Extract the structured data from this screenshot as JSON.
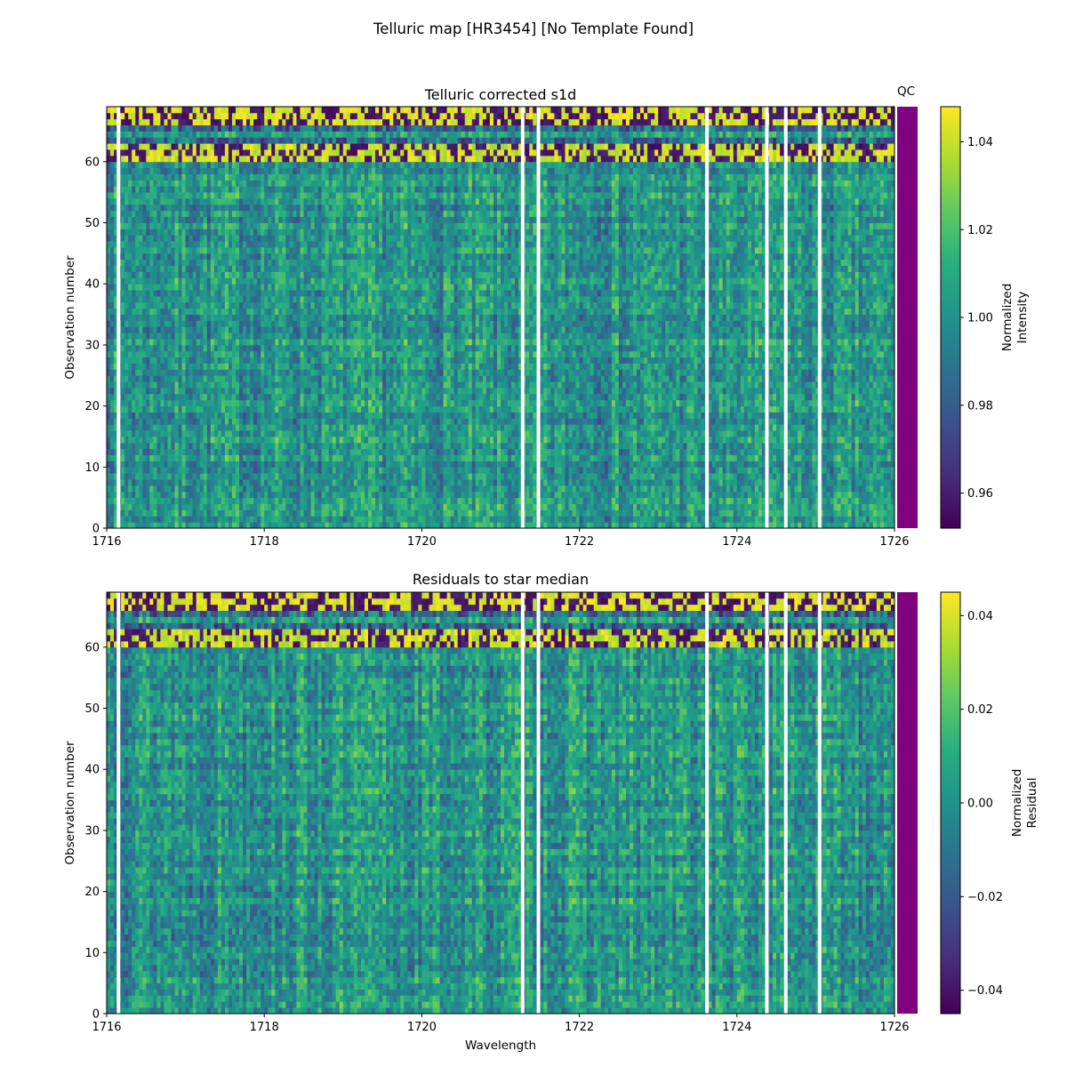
{
  "figure": {
    "title": "Telluric map [HR3454] [No Template Found]",
    "qc_label": "QC"
  },
  "chart_data": [
    {
      "type": "heatmap",
      "title": "Telluric corrected s1d",
      "xlabel": "",
      "ylabel": "Observation number",
      "xlim": [
        1716,
        1726
      ],
      "ylim": [
        0,
        69
      ],
      "x_ticks": [
        "1716",
        "1718",
        "1720",
        "1722",
        "1724",
        "1726"
      ],
      "y_ticks": [
        "0",
        "10",
        "20",
        "30",
        "40",
        "50",
        "60"
      ],
      "colorbar": {
        "label_lines": [
          "Normalized",
          "Intensity"
        ],
        "range": [
          0.952,
          1.048
        ],
        "ticks": [
          "0.96",
          "0.98",
          "1.00",
          "1.02",
          "1.04"
        ],
        "colormap": "viridis"
      },
      "qc_color": "#800080",
      "gaps_wavelength": [
        1716.15,
        1721.28,
        1721.48,
        1723.62,
        1724.38,
        1724.62,
        1725.05
      ]
    },
    {
      "type": "heatmap",
      "title": "Residuals to star median",
      "xlabel": "Wavelength",
      "ylabel": "Observation number",
      "xlim": [
        1716,
        1726
      ],
      "ylim": [
        0,
        69
      ],
      "x_ticks": [
        "1716",
        "1718",
        "1720",
        "1722",
        "1724",
        "1726"
      ],
      "y_ticks": [
        "0",
        "10",
        "20",
        "30",
        "40",
        "50",
        "60"
      ],
      "colorbar": {
        "label_lines": [
          "Normalized",
          "Residual"
        ],
        "range": [
          -0.045,
          0.045
        ],
        "ticks": [
          "0.04",
          "0.02",
          "0.00",
          "−0.02",
          "−0.04"
        ],
        "colormap": "viridis"
      },
      "qc_color": "#800080",
      "gaps_wavelength": [
        1716.15,
        1721.28,
        1721.48,
        1723.62,
        1724.38,
        1724.62,
        1725.05
      ]
    }
  ]
}
